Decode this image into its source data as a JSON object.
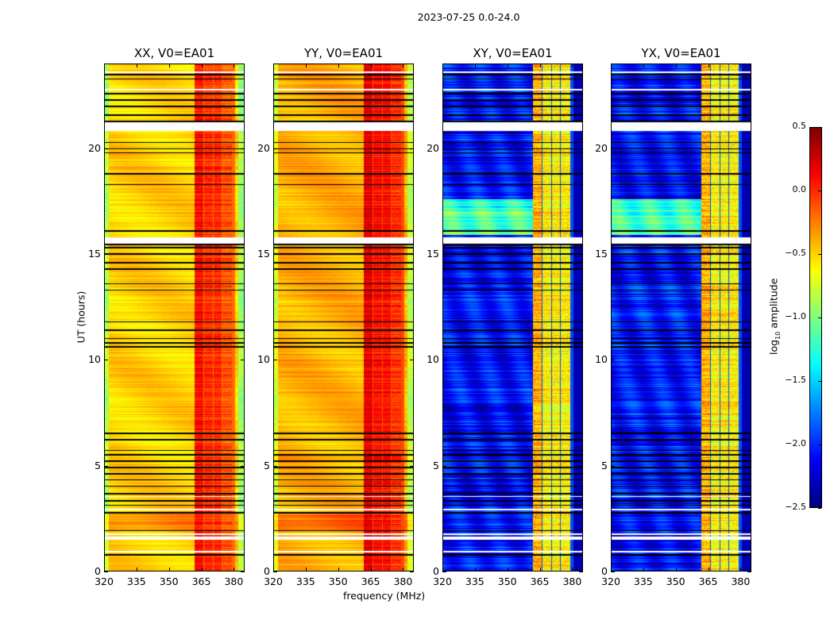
{
  "suptitle": "2023-07-25 0.0-24.0",
  "chart_data": {
    "type": "heatmap",
    "xlabel": "frequency (MHz)",
    "ylabel": "UT (hours)",
    "xlim": [
      320,
      385
    ],
    "ylim": [
      0,
      24
    ],
    "xticks": [
      320,
      335,
      350,
      365,
      380
    ],
    "yticks": [
      0,
      5,
      10,
      15,
      20
    ],
    "colormap": "jet",
    "colorbar": {
      "label_main": "log",
      "label_sub": "10",
      "label_rest": " amplitude",
      "range": [
        -2.5,
        0.5
      ],
      "ticks": [
        "0.5",
        "0.0",
        "−0.5",
        "−1.0",
        "−1.5",
        "−2.0",
        "−2.5"
      ],
      "tick_values": [
        0.5,
        0.0,
        -0.5,
        -1.0,
        -1.5,
        -2.0,
        -2.5
      ]
    },
    "panels": [
      {
        "title": "XX, V0=EA01",
        "kind": "parallel",
        "base_level": -0.5,
        "band_level": 0.0
      },
      {
        "title": "YY, V0=EA01",
        "kind": "parallel",
        "base_level": -0.4,
        "band_level": 0.1
      },
      {
        "title": "XY, V0=EA01",
        "kind": "cross",
        "base_level": -2.1,
        "band_level": -0.6
      },
      {
        "title": "YX, V0=EA01",
        "kind": "cross",
        "base_level": -2.1,
        "band_level": -0.6
      }
    ],
    "band_mhz": [
      362,
      381
    ],
    "band_subchannels_mhz": [
      [
        362,
        366
      ],
      [
        366.5,
        370.5
      ],
      [
        371,
        374.5
      ],
      [
        375,
        379.5
      ]
    ],
    "enhanced_cross_hours": [
      15.9,
      17.6
    ],
    "enhanced_parallel_hours": [
      1.9,
      2.7
    ],
    "flagged_hours": [
      [
        0.85,
        0.95
      ],
      [
        1.45,
        1.6
      ],
      [
        1.7,
        1.78
      ],
      [
        2.85,
        2.92
      ],
      [
        3.5,
        3.55
      ],
      [
        15.5,
        15.8
      ],
      [
        20.85,
        21.25
      ],
      [
        22.75,
        22.85
      ],
      [
        23.6,
        23.68
      ]
    ],
    "black_line_hours": [
      0.75,
      1.9,
      2.75,
      3.1,
      3.3,
      3.65,
      4.0,
      4.3,
      4.6,
      4.9,
      5.2,
      5.5,
      5.7,
      6.2,
      6.5,
      10.6,
      10.8,
      11.0,
      11.4,
      11.8,
      13.3,
      13.6,
      14.3,
      14.6,
      15.0,
      15.3,
      15.45,
      16.1,
      18.3,
      18.8,
      19.8,
      20.0,
      20.3,
      21.3,
      21.6,
      22.0,
      22.3,
      22.6,
      23.3,
      23.5
    ]
  }
}
